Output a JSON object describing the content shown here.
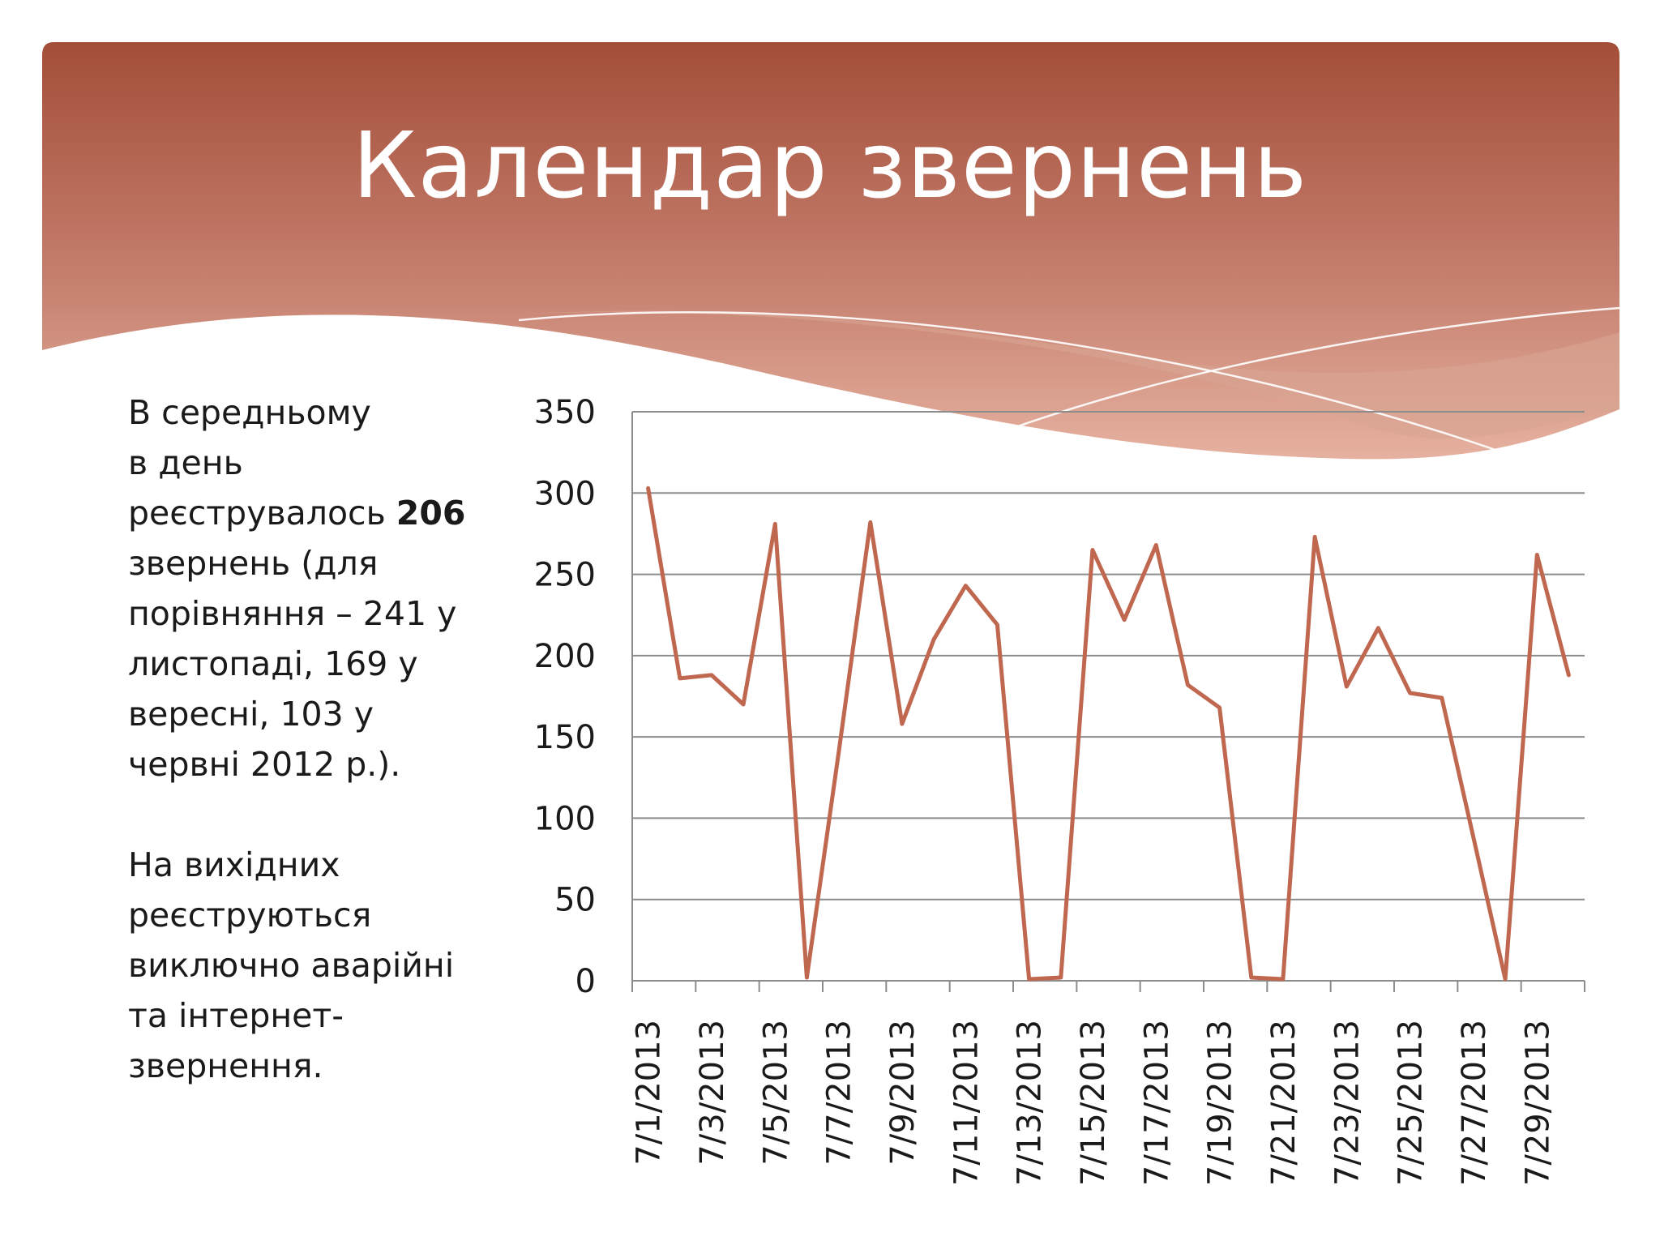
{
  "slide": {
    "title": "Календар звернень"
  },
  "text": {
    "p1_lines": [
      "В середньому",
      "в день"
    ],
    "p1_pre": "реєструвалось ",
    "p1_bold": "206",
    "p1_rest": [
      "звернень (для",
      "порівняння – 241 у",
      "листопаді, 169 у",
      "вересні, 103 у",
      "червні 2012 р.)."
    ],
    "p2_lines": [
      "На вихідних",
      "реєструються",
      "виключно аварійні",
      "та інтернет-",
      "звернення."
    ]
  },
  "colors": {
    "banner_top": "#a34e38",
    "banner_bottom": "#e6b1a0",
    "line": "#c0674f",
    "grid": "#8c8c8c"
  },
  "chart_data": {
    "type": "line",
    "x": [
      "7/1/2013",
      "7/2/2013",
      "7/3/2013",
      "7/4/2013",
      "7/5/2013",
      "7/6/2013",
      "7/7/2013",
      "7/8/2013",
      "7/9/2013",
      "7/10/2013",
      "7/11/2013",
      "7/12/2013",
      "7/13/2013",
      "7/14/2013",
      "7/15/2013",
      "7/16/2013",
      "7/17/2013",
      "7/18/2013",
      "7/19/2013",
      "7/20/2013",
      "7/21/2013",
      "7/22/2013",
      "7/23/2013",
      "7/24/2013",
      "7/25/2013",
      "7/26/2013",
      "7/27/2013",
      "7/28/2013",
      "7/29/2013",
      "7/30/2013"
    ],
    "x_tick_labels": [
      "7/1/2013",
      "7/3/2013",
      "7/5/2013",
      "7/7/2013",
      "7/9/2013",
      "7/11/2013",
      "7/13/2013",
      "7/15/2013",
      "7/17/2013",
      "7/19/2013",
      "7/21/2013",
      "7/23/2013",
      "7/25/2013",
      "7/27/2013",
      "7/29/2013"
    ],
    "series": [
      {
        "values": [
          303,
          186,
          188,
          170,
          281,
          2,
          140,
          282,
          158,
          210,
          243,
          219,
          1,
          2,
          265,
          222,
          268,
          182,
          168,
          2,
          1,
          273,
          181,
          217,
          177,
          174,
          88,
          1,
          262,
          188
        ]
      }
    ],
    "yticks": [
      0,
      50,
      100,
      150,
      200,
      250,
      300,
      350
    ],
    "ylim": [
      0,
      350
    ],
    "grid": true,
    "legend": "none"
  }
}
